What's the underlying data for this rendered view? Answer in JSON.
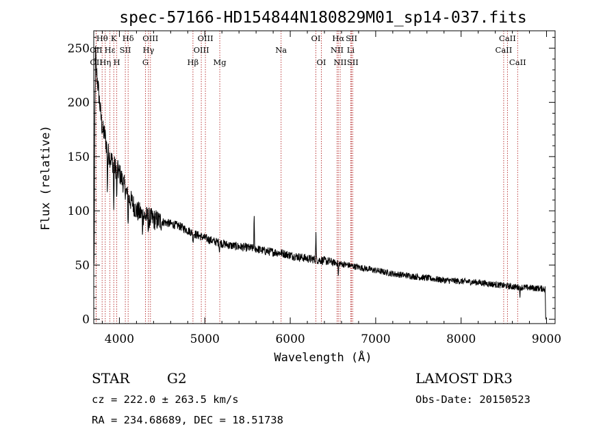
{
  "chart_data": {
    "type": "line",
    "title": "spec-57166-HD154844N180829M01_sp14-037.fits",
    "xlabel": "Wavelength (Å)",
    "ylabel": "Flux (relative)",
    "xlim": [
      3700,
      9100
    ],
    "ylim": [
      -4,
      266
    ],
    "xticks": [
      4000,
      5000,
      6000,
      7000,
      8000,
      9000
    ],
    "yticks": [
      0,
      50,
      100,
      150,
      200,
      250
    ],
    "line_color": "#000000",
    "marker_color": "#b22222",
    "spectral_lines": [
      {
        "label": "OII",
        "wavelength": 3727,
        "row": 2
      },
      {
        "label": "OII",
        "wavelength": 3729,
        "row": 3
      },
      {
        "label": "Hθ",
        "wavelength": 3798,
        "row": 1
      },
      {
        "label": "Hη",
        "wavelength": 3835,
        "row": 3
      },
      {
        "label": "Hε",
        "wavelength": 3889,
        "row": 2
      },
      {
        "label": "K",
        "wavelength": 3934,
        "row": 1
      },
      {
        "label": "SII",
        "wavelength": 4069,
        "row": 2
      },
      {
        "label": "H",
        "wavelength": 3969,
        "row": 3
      },
      {
        "label": "Hδ",
        "wavelength": 4102,
        "row": 1
      },
      {
        "label": "OIII",
        "wavelength": 4363,
        "row": 1
      },
      {
        "label": "Hγ",
        "wavelength": 4340,
        "row": 2
      },
      {
        "label": "G",
        "wavelength": 4305,
        "row": 3
      },
      {
        "label": "Hβ",
        "wavelength": 4861,
        "row": 3
      },
      {
        "label": "OIII",
        "wavelength": 5007,
        "row": 1
      },
      {
        "label": "OIII",
        "wavelength": 4959,
        "row": 2
      },
      {
        "label": "Mg",
        "wavelength": 5175,
        "row": 3
      },
      {
        "label": "Na",
        "wavelength": 5893,
        "row": 2
      },
      {
        "label": "OI",
        "wavelength": 6300,
        "row": 1
      },
      {
        "label": "OI",
        "wavelength": 6364,
        "row": 3
      },
      {
        "label": "Hα",
        "wavelength": 6563,
        "row": 1
      },
      {
        "label": "NII",
        "wavelength": 6548,
        "row": 2
      },
      {
        "label": "NII",
        "wavelength": 6584,
        "row": 3
      },
      {
        "label": "SII",
        "wavelength": 6717,
        "row": 1
      },
      {
        "label": "Li",
        "wavelength": 6708,
        "row": 2
      },
      {
        "label": "SII",
        "wavelength": 6731,
        "row": 3
      },
      {
        "label": "CaII",
        "wavelength": 8542,
        "row": 1
      },
      {
        "label": "CaII",
        "wavelength": 8498,
        "row": 2
      },
      {
        "label": "CaII",
        "wavelength": 8662,
        "row": 3
      }
    ],
    "continuum": [
      [
        3700,
        80
      ],
      [
        3715,
        205
      ],
      [
        3730,
        230
      ],
      [
        3750,
        215
      ],
      [
        3780,
        190
      ],
      [
        3800,
        175
      ],
      [
        3830,
        170
      ],
      [
        3860,
        155
      ],
      [
        3900,
        148
      ],
      [
        3950,
        140
      ],
      [
        4000,
        135
      ],
      [
        4050,
        125
      ],
      [
        4100,
        112
      ],
      [
        4150,
        108
      ],
      [
        4200,
        100
      ],
      [
        4300,
        95
      ],
      [
        4400,
        92
      ],
      [
        4500,
        90
      ],
      [
        4600,
        88
      ],
      [
        4700,
        86
      ],
      [
        4800,
        82
      ],
      [
        4900,
        78
      ],
      [
        5000,
        75
      ],
      [
        5100,
        72
      ],
      [
        5200,
        70
      ],
      [
        5300,
        68
      ],
      [
        5400,
        67
      ],
      [
        5500,
        66
      ],
      [
        5600,
        65
      ],
      [
        5700,
        63
      ],
      [
        5800,
        62
      ],
      [
        5900,
        61
      ],
      [
        6000,
        59
      ],
      [
        6200,
        56
      ],
      [
        6400,
        54
      ],
      [
        6600,
        51
      ],
      [
        6800,
        48
      ],
      [
        7000,
        45
      ],
      [
        7200,
        42
      ],
      [
        7400,
        40
      ],
      [
        7600,
        38
      ],
      [
        7800,
        36
      ],
      [
        8000,
        35
      ],
      [
        8200,
        34
      ],
      [
        8400,
        32
      ],
      [
        8600,
        30
      ],
      [
        8800,
        29
      ],
      [
        8990,
        28
      ]
    ],
    "features": [
      {
        "wavelength": 3705,
        "depth": -75
      },
      {
        "wavelength": 3722,
        "depth": 35
      },
      {
        "wavelength": 3860,
        "depth": -40
      },
      {
        "wavelength": 3934,
        "depth": -45
      },
      {
        "wavelength": 3969,
        "depth": -35
      },
      {
        "wavelength": 4102,
        "depth": -25
      },
      {
        "wavelength": 4270,
        "depth": -14
      },
      {
        "wavelength": 4340,
        "depth": -12
      },
      {
        "wavelength": 4861,
        "depth": -10
      },
      {
        "wavelength": 5170,
        "depth": -8
      },
      {
        "wavelength": 5577,
        "depth": 32
      },
      {
        "wavelength": 6300,
        "depth": 28
      },
      {
        "wavelength": 6563,
        "depth": -14
      },
      {
        "wavelength": 8690,
        "depth": -8
      },
      {
        "wavelength": 8990,
        "depth": -26
      }
    ],
    "noise_amplitude": {
      "blue": 10,
      "mid": 4,
      "red": 3
    }
  },
  "info": {
    "object_class": "STAR",
    "subclass": "G2",
    "survey": "LAMOST DR3",
    "cz": "cz = 222.0 ± 263.5 km/s",
    "obs_date": "Obs-Date: 20150523",
    "coords": "RA = 234.68689, DEC =  18.51738"
  }
}
